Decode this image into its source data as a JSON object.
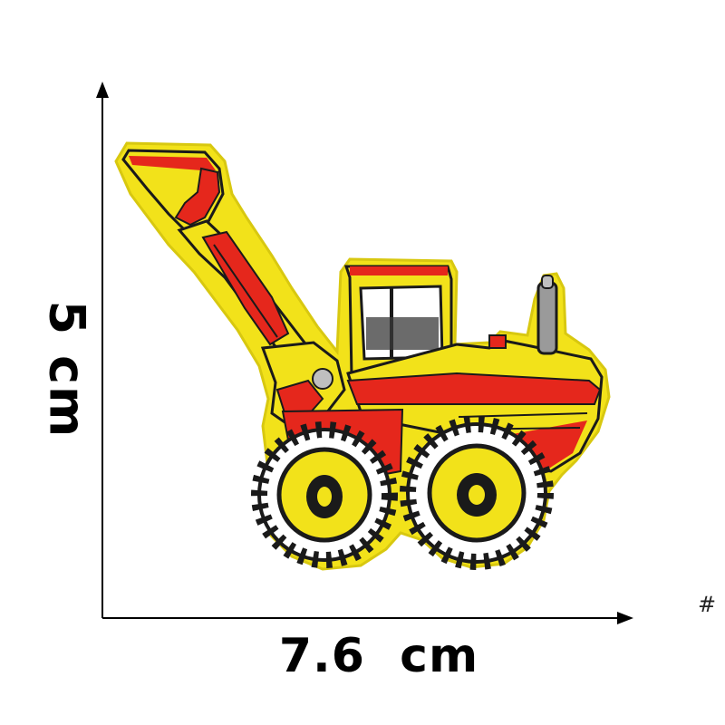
{
  "measurements": {
    "height": "5  cm",
    "width": "7.6  cm"
  },
  "corner_mark": "#",
  "patch": {
    "subject": "excavator-embroidered-patch",
    "colors": {
      "body": "#f2e21a",
      "accent": "#e5271c",
      "outline": "#1a1a1a",
      "tire": "#ffffff",
      "window": "#ffffff"
    }
  }
}
